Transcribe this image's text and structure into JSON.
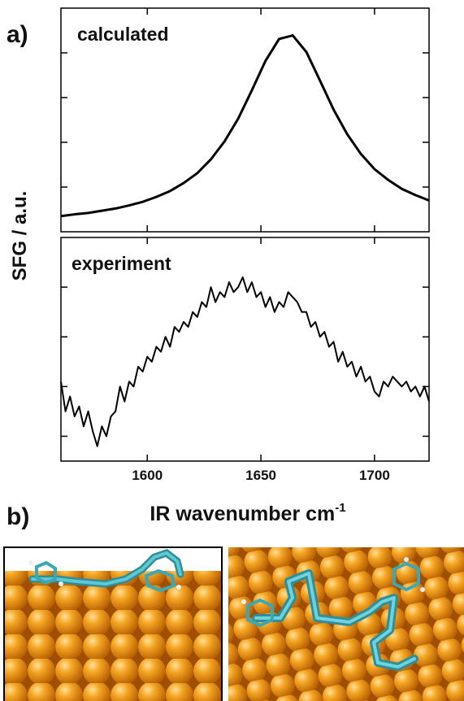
{
  "panel_labels": [
    "a)",
    "b)"
  ],
  "ylabel": "SFG / a.u.",
  "chart_data": [
    {
      "type": "line",
      "annotation": "calculated",
      "color": "#000000",
      "xlim": [
        1562,
        1724
      ],
      "ylim": [
        0,
        5
      ],
      "xticks": [
        1600,
        1650,
        1700
      ],
      "yticks": [
        1,
        2,
        3,
        4
      ],
      "x": [
        1562,
        1568,
        1574,
        1580,
        1586,
        1592,
        1598,
        1604,
        1610,
        1616,
        1622,
        1628,
        1634,
        1640,
        1646,
        1652,
        1658,
        1664,
        1670,
        1676,
        1682,
        1688,
        1694,
        1700,
        1706,
        1712,
        1718,
        1724
      ],
      "values": [
        0.35,
        0.39,
        0.42,
        0.47,
        0.52,
        0.59,
        0.67,
        0.78,
        0.91,
        1.09,
        1.31,
        1.62,
        2.02,
        2.53,
        3.16,
        3.82,
        4.31,
        4.39,
        4.02,
        3.38,
        2.73,
        2.18,
        1.74,
        1.4,
        1.16,
        0.96,
        0.82,
        0.7
      ]
    },
    {
      "type": "line",
      "annotation": "experiment",
      "color": "#000000",
      "xlabel": "IR wavenumber cm",
      "xlabel_sup": "-1",
      "xlim": [
        1562,
        1724
      ],
      "ylim": [
        0,
        4.5
      ],
      "xticks": [
        1600,
        1650,
        1700
      ],
      "yticks": [
        0.5,
        1.5,
        2.5,
        3.5
      ],
      "x": [
        1562,
        1564,
        1566,
        1568,
        1570,
        1572,
        1574,
        1576,
        1578,
        1580,
        1582,
        1584,
        1586,
        1588,
        1590,
        1592,
        1594,
        1596,
        1598,
        1600,
        1602,
        1604,
        1606,
        1608,
        1610,
        1612,
        1614,
        1616,
        1618,
        1620,
        1622,
        1624,
        1626,
        1628,
        1630,
        1632,
        1634,
        1636,
        1638,
        1640,
        1642,
        1644,
        1646,
        1648,
        1650,
        1652,
        1654,
        1656,
        1658,
        1660,
        1662,
        1664,
        1666,
        1668,
        1670,
        1672,
        1674,
        1676,
        1678,
        1680,
        1682,
        1684,
        1686,
        1688,
        1690,
        1692,
        1694,
        1696,
        1698,
        1700,
        1702,
        1704,
        1706,
        1708,
        1710,
        1712,
        1714,
        1716,
        1718,
        1720,
        1722,
        1724
      ],
      "values": [
        1.6,
        1.0,
        1.3,
        0.9,
        1.1,
        0.7,
        1.0,
        0.6,
        0.3,
        0.7,
        0.5,
        0.9,
        1.0,
        1.5,
        1.2,
        1.6,
        1.5,
        1.9,
        1.8,
        2.1,
        2.0,
        2.3,
        2.2,
        2.5,
        2.3,
        2.7,
        2.6,
        2.8,
        2.7,
        3.0,
        2.9,
        3.2,
        3.1,
        3.5,
        3.2,
        3.4,
        3.3,
        3.6,
        3.4,
        3.5,
        3.7,
        3.4,
        3.6,
        3.3,
        3.4,
        3.1,
        3.3,
        3.0,
        3.2,
        3.1,
        3.4,
        3.3,
        3.2,
        3.0,
        3.0,
        2.7,
        2.8,
        2.5,
        2.6,
        2.3,
        2.4,
        2.0,
        2.2,
        1.9,
        2.0,
        1.7,
        1.9,
        1.6,
        1.7,
        1.4,
        1.3,
        1.6,
        1.5,
        1.7,
        1.6,
        1.5,
        1.6,
        1.4,
        1.5,
        1.3,
        1.5,
        1.2
      ]
    }
  ]
}
